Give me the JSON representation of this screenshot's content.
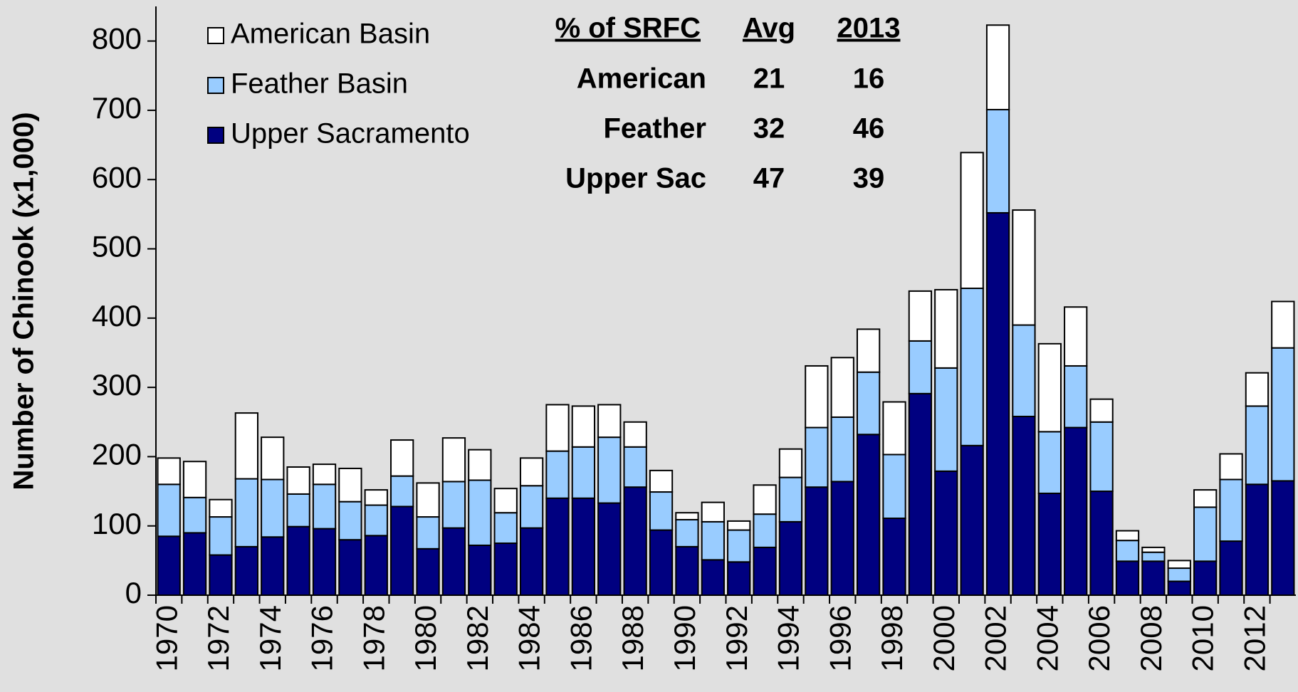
{
  "chart_data": {
    "type": "stacked-bar",
    "y_label": "Number of Chinook (x1,000)",
    "categories": [
      "1970",
      null,
      "1972",
      null,
      "1974",
      null,
      "1976",
      null,
      "1978",
      null,
      "1980",
      null,
      "1982",
      null,
      "1984",
      null,
      "1986",
      null,
      "1988",
      null,
      "1990",
      null,
      "1992",
      null,
      "1994",
      null,
      "1996",
      null,
      "1998",
      null,
      "2000",
      null,
      "2002",
      null,
      "2004",
      null,
      "2006",
      null,
      "2008",
      null,
      "2010",
      null,
      "2012",
      null
    ],
    "series": [
      {
        "name": "Upper Sacramento",
        "color": "#000080",
        "values": [
          85,
          90,
          58,
          70,
          84,
          99,
          96,
          80,
          86,
          128,
          67,
          97,
          72,
          75,
          97,
          140,
          140,
          133,
          156,
          94,
          70,
          51,
          48,
          69,
          106,
          156,
          164,
          232,
          111,
          291,
          179,
          216,
          552,
          258,
          147,
          242,
          150,
          49,
          49,
          20,
          49,
          78,
          160,
          165
        ]
      },
      {
        "name": "Feather Basin",
        "color": "#99ccff",
        "values": [
          75,
          51,
          55,
          98,
          83,
          47,
          64,
          55,
          44,
          44,
          46,
          67,
          94,
          44,
          61,
          68,
          74,
          95,
          58,
          55,
          39,
          55,
          46,
          48,
          64,
          86,
          93,
          90,
          92,
          76,
          149,
          227,
          149,
          132,
          89,
          89,
          100,
          30,
          13,
          19,
          78,
          89,
          113,
          192
        ]
      },
      {
        "name": "American Basin",
        "color": "#ffffff",
        "values": [
          38,
          52,
          25,
          95,
          61,
          39,
          29,
          48,
          22,
          52,
          49,
          63,
          44,
          35,
          40,
          67,
          59,
          47,
          36,
          31,
          10,
          28,
          13,
          42,
          41,
          89,
          86,
          62,
          76,
          72,
          113,
          196,
          122,
          166,
          127,
          85,
          33,
          14,
          7,
          11,
          25,
          37,
          48,
          67
        ]
      }
    ],
    "ylim": [
      0,
      850
    ],
    "yticks": [
      0,
      100,
      200,
      300,
      400,
      500,
      600,
      700,
      800
    ],
    "grid": false,
    "legend": "top-left",
    "table": {
      "headers": [
        "% of SRFC",
        "Avg",
        "2013"
      ],
      "rows": [
        [
          "American",
          21,
          16
        ],
        [
          "Feather",
          32,
          46
        ],
        [
          "Upper Sac",
          47,
          39
        ]
      ]
    }
  }
}
